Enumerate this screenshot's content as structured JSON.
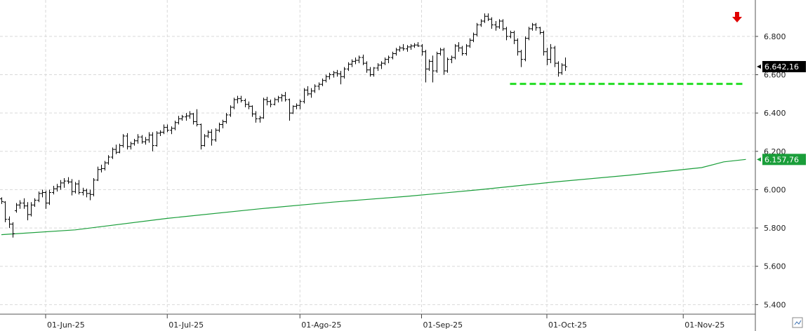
{
  "chart_data": {
    "type": "ohlc",
    "title": "",
    "xlabel": "",
    "ylabel": "",
    "ylim": [
      5350,
      6990
    ],
    "grid": true,
    "yticks": [
      {
        "value": 5400,
        "label": "5.400"
      },
      {
        "value": 5600,
        "label": "5.600"
      },
      {
        "value": 5800,
        "label": "5.800"
      },
      {
        "value": 6000,
        "label": "6.000"
      },
      {
        "value": 6200,
        "label": "6.200"
      },
      {
        "value": 6400,
        "label": "6.400"
      },
      {
        "value": 6600,
        "label": "6.600"
      },
      {
        "value": 6800,
        "label": "6.800"
      }
    ],
    "xticks": [
      {
        "index": 12,
        "label": "01-Jun-25"
      },
      {
        "index": 45,
        "label": "01-Jul-25"
      },
      {
        "index": 81,
        "label": "01-Ago-25"
      },
      {
        "index": 114,
        "label": "01-Sep-25"
      },
      {
        "index": 148,
        "label": "01-Oct-25"
      },
      {
        "index": 185,
        "label": "01-Nov-25"
      }
    ],
    "candles": [
      [
        5952,
        5960,
        5925,
        5938
      ],
      [
        5935,
        5940,
        5830,
        5845
      ],
      [
        5845,
        5860,
        5800,
        5820
      ],
      [
        5820,
        5830,
        5750,
        5770
      ],
      [
        5890,
        5930,
        5880,
        5920
      ],
      [
        5920,
        5945,
        5900,
        5930
      ],
      [
        5930,
        5955,
        5900,
        5915
      ],
      [
        5915,
        5935,
        5840,
        5870
      ],
      [
        5870,
        5935,
        5860,
        5920
      ],
      [
        5920,
        5955,
        5910,
        5945
      ],
      [
        5945,
        5990,
        5935,
        5980
      ],
      [
        5980,
        6000,
        5960,
        5985
      ],
      [
        5985,
        5995,
        5900,
        5930
      ],
      [
        5930,
        6000,
        5920,
        5985
      ],
      [
        5985,
        6020,
        5975,
        6005
      ],
      [
        6005,
        6030,
        5990,
        6015
      ],
      [
        6015,
        6050,
        6000,
        6035
      ],
      [
        6035,
        6060,
        6010,
        6045
      ],
      [
        6045,
        6065,
        6030,
        6040
      ],
      [
        6040,
        6055,
        5970,
        5990
      ],
      [
        5990,
        6040,
        5980,
        6030
      ],
      [
        6030,
        6050,
        5975,
        5985
      ],
      [
        5985,
        6010,
        5970,
        5995
      ],
      [
        5995,
        6005,
        5960,
        5980
      ],
      [
        5980,
        6000,
        5945,
        5975
      ],
      [
        5975,
        6060,
        5965,
        6050
      ],
      [
        6050,
        6120,
        6045,
        6105
      ],
      [
        6105,
        6130,
        6090,
        6110
      ],
      [
        6110,
        6150,
        6100,
        6140
      ],
      [
        6140,
        6180,
        6130,
        6170
      ],
      [
        6170,
        6220,
        6160,
        6210
      ],
      [
        6210,
        6235,
        6185,
        6195
      ],
      [
        6195,
        6240,
        6190,
        6230
      ],
      [
        6230,
        6290,
        6220,
        6280
      ],
      [
        6280,
        6295,
        6210,
        6225
      ],
      [
        6225,
        6250,
        6210,
        6240
      ],
      [
        6240,
        6265,
        6230,
        6255
      ],
      [
        6255,
        6290,
        6240,
        6275
      ],
      [
        6275,
        6285,
        6240,
        6250
      ],
      [
        6250,
        6275,
        6235,
        6260
      ],
      [
        6260,
        6300,
        6245,
        6285
      ],
      [
        6285,
        6300,
        6200,
        6230
      ],
      [
        6230,
        6305,
        6225,
        6295
      ],
      [
        6295,
        6310,
        6280,
        6300
      ],
      [
        6300,
        6340,
        6290,
        6325
      ],
      [
        6325,
        6340,
        6300,
        6310
      ],
      [
        6310,
        6330,
        6290,
        6320
      ],
      [
        6320,
        6360,
        6310,
        6350
      ],
      [
        6350,
        6385,
        6340,
        6370
      ],
      [
        6370,
        6390,
        6360,
        6380
      ],
      [
        6380,
        6400,
        6360,
        6385
      ],
      [
        6385,
        6410,
        6370,
        6395
      ],
      [
        6395,
        6400,
        6340,
        6355
      ],
      [
        6355,
        6420,
        6330,
        6340
      ],
      [
        6340,
        6345,
        6210,
        6230
      ],
      [
        6230,
        6290,
        6225,
        6280
      ],
      [
        6280,
        6310,
        6270,
        6300
      ],
      [
        6300,
        6315,
        6230,
        6260
      ],
      [
        6260,
        6320,
        6250,
        6310
      ],
      [
        6310,
        6350,
        6300,
        6340
      ],
      [
        6340,
        6365,
        6320,
        6355
      ],
      [
        6355,
        6400,
        6345,
        6390
      ],
      [
        6390,
        6440,
        6380,
        6430
      ],
      [
        6430,
        6480,
        6420,
        6470
      ],
      [
        6470,
        6490,
        6450,
        6475
      ],
      [
        6475,
        6490,
        6455,
        6465
      ],
      [
        6465,
        6475,
        6430,
        6445
      ],
      [
        6445,
        6460,
        6420,
        6435
      ],
      [
        6435,
        6440,
        6380,
        6395
      ],
      [
        6395,
        6410,
        6350,
        6370
      ],
      [
        6370,
        6385,
        6350,
        6375
      ],
      [
        6375,
        6480,
        6370,
        6470
      ],
      [
        6470,
        6485,
        6440,
        6460
      ],
      [
        6460,
        6470,
        6430,
        6445
      ],
      [
        6445,
        6480,
        6440,
        6470
      ],
      [
        6470,
        6490,
        6455,
        6480
      ],
      [
        6480,
        6500,
        6460,
        6490
      ],
      [
        6490,
        6510,
        6460,
        6470
      ],
      [
        6470,
        6475,
        6360,
        6400
      ],
      [
        6400,
        6440,
        6395,
        6435
      ],
      [
        6435,
        6450,
        6420,
        6440
      ],
      [
        6440,
        6470,
        6420,
        6460
      ],
      [
        6460,
        6530,
        6450,
        6520
      ],
      [
        6520,
        6540,
        6490,
        6500
      ],
      [
        6500,
        6530,
        6480,
        6515
      ],
      [
        6515,
        6550,
        6505,
        6540
      ],
      [
        6540,
        6560,
        6520,
        6550
      ],
      [
        6550,
        6580,
        6540,
        6570
      ],
      [
        6570,
        6600,
        6560,
        6590
      ],
      [
        6590,
        6610,
        6575,
        6600
      ],
      [
        6600,
        6620,
        6585,
        6610
      ],
      [
        6610,
        6625,
        6590,
        6605
      ],
      [
        6605,
        6620,
        6550,
        6590
      ],
      [
        6590,
        6640,
        6580,
        6630
      ],
      [
        6630,
        6665,
        6620,
        6655
      ],
      [
        6655,
        6680,
        6640,
        6670
      ],
      [
        6670,
        6690,
        6655,
        6675
      ],
      [
        6675,
        6700,
        6660,
        6690
      ],
      [
        6690,
        6705,
        6650,
        6660
      ],
      [
        6660,
        6670,
        6610,
        6625
      ],
      [
        6625,
        6640,
        6590,
        6600
      ],
      [
        6600,
        6640,
        6590,
        6635
      ],
      [
        6635,
        6660,
        6620,
        6650
      ],
      [
        6650,
        6670,
        6630,
        6660
      ],
      [
        6660,
        6690,
        6650,
        6680
      ],
      [
        6680,
        6700,
        6660,
        6690
      ],
      [
        6690,
        6720,
        6680,
        6710
      ],
      [
        6710,
        6740,
        6700,
        6730
      ],
      [
        6730,
        6750,
        6720,
        6740
      ],
      [
        6740,
        6760,
        6725,
        6735
      ],
      [
        6735,
        6755,
        6720,
        6745
      ],
      [
        6745,
        6760,
        6730,
        6750
      ],
      [
        6750,
        6765,
        6740,
        6755
      ],
      [
        6755,
        6770,
        6745,
        6750
      ],
      [
        6750,
        6760,
        6700,
        6720
      ],
      [
        6720,
        6730,
        6560,
        6630
      ],
      [
        6630,
        6680,
        6620,
        6670
      ],
      [
        6670,
        6700,
        6560,
        6620
      ],
      [
        6620,
        6720,
        6610,
        6710
      ],
      [
        6710,
        6740,
        6700,
        6730
      ],
      [
        6730,
        6740,
        6600,
        6620
      ],
      [
        6620,
        6690,
        6610,
        6680
      ],
      [
        6680,
        6700,
        6660,
        6690
      ],
      [
        6690,
        6760,
        6680,
        6750
      ],
      [
        6750,
        6770,
        6720,
        6740
      ],
      [
        6740,
        6750,
        6700,
        6710
      ],
      [
        6710,
        6760,
        6700,
        6750
      ],
      [
        6750,
        6790,
        6740,
        6780
      ],
      [
        6780,
        6820,
        6770,
        6810
      ],
      [
        6810,
        6870,
        6800,
        6860
      ],
      [
        6860,
        6890,
        6850,
        6880
      ],
      [
        6880,
        6920,
        6870,
        6905
      ],
      [
        6905,
        6920,
        6880,
        6890
      ],
      [
        6890,
        6900,
        6840,
        6860
      ],
      [
        6860,
        6880,
        6830,
        6850
      ],
      [
        6850,
        6890,
        6840,
        6880
      ],
      [
        6880,
        6890,
        6830,
        6840
      ],
      [
        6840,
        6850,
        6780,
        6800
      ],
      [
        6800,
        6830,
        6790,
        6820
      ],
      [
        6820,
        6830,
        6760,
        6780
      ],
      [
        6780,
        6790,
        6700,
        6720
      ],
      [
        6720,
        6730,
        6640,
        6680
      ],
      [
        6680,
        6800,
        6670,
        6790
      ],
      [
        6790,
        6850,
        6780,
        6840
      ],
      [
        6840,
        6870,
        6830,
        6860
      ],
      [
        6860,
        6870,
        6830,
        6845
      ],
      [
        6845,
        6850,
        6810,
        6820
      ],
      [
        6820,
        6830,
        6700,
        6720
      ],
      [
        6720,
        6740,
        6650,
        6680
      ],
      [
        6680,
        6760,
        6660,
        6740
      ],
      [
        6740,
        6750,
        6640,
        6660
      ],
      [
        6660,
        6670,
        6590,
        6610
      ],
      [
        6610,
        6660,
        6600,
        6650
      ],
      [
        6650,
        6690,
        6620,
        6642
      ]
    ],
    "ma_series": {
      "name": "",
      "points": [
        [
          0,
          5765
        ],
        [
          20,
          5790
        ],
        [
          45,
          5850
        ],
        [
          70,
          5900
        ],
        [
          90,
          5935
        ],
        [
          110,
          5965
        ],
        [
          130,
          6000
        ],
        [
          150,
          6040
        ],
        [
          170,
          6075
        ],
        [
          190,
          6115
        ],
        [
          196,
          6145
        ],
        [
          202,
          6157.76
        ]
      ]
    },
    "support_line": {
      "value": 6552,
      "from_index": 138,
      "to_index": 202,
      "color": "#22dd22"
    },
    "last_price": {
      "value": 6642.16,
      "label": "6.642,16",
      "color": "#000000"
    },
    "ma_price": {
      "value": 6157.76,
      "label": "6.157,76",
      "color": "#1a9e3a"
    },
    "ma_color": "#1a9e3a",
    "arrow_color": "#e00000"
  }
}
